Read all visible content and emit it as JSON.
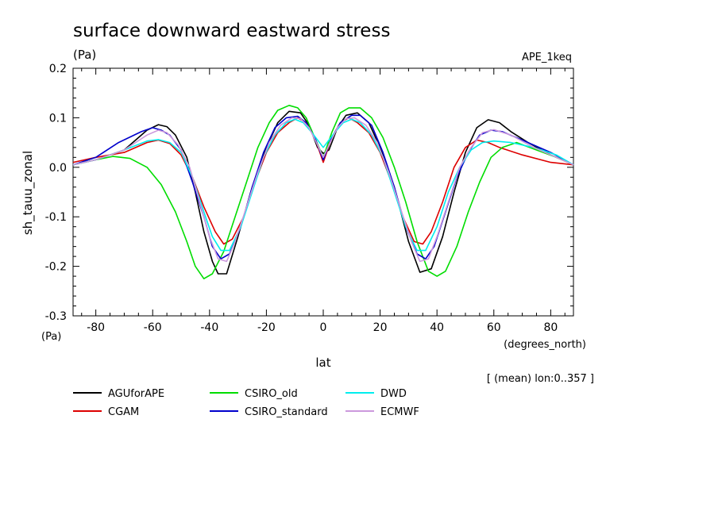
{
  "chart_data": {
    "type": "line",
    "title": "surface downward eastward stress",
    "units": "(Pa)",
    "experiment": "APE_1keq",
    "ylabel": "sh_tauu_zonal",
    "y_units": "(Pa)",
    "xlabel": "lat",
    "x_units": "(degrees_north)",
    "note": "[ (mean) lon:0..357 ]",
    "xlim": [
      -88,
      88
    ],
    "ylim": [
      -0.3,
      0.2
    ],
    "x_ticks": [
      "-80",
      "-60",
      "-40",
      "-20",
      "0",
      "20",
      "40",
      "60",
      "80"
    ],
    "y_ticks": [
      "0.2",
      "0.1",
      "0.0",
      "-0.1",
      "-0.2",
      "-0.3"
    ],
    "series": [
      {
        "name": "AGUforAPE",
        "color": "#000000",
        "points": [
          [
            -88,
            0.005
          ],
          [
            -80,
            0.015
          ],
          [
            -70,
            0.035
          ],
          [
            -62,
            0.075
          ],
          [
            -58,
            0.086
          ],
          [
            -55,
            0.082
          ],
          [
            -52,
            0.065
          ],
          [
            -48,
            0.02
          ],
          [
            -45,
            -0.05
          ],
          [
            -42,
            -0.13
          ],
          [
            -39,
            -0.19
          ],
          [
            -37,
            -0.215
          ],
          [
            -34,
            -0.215
          ],
          [
            -30,
            -0.14
          ],
          [
            -25,
            -0.04
          ],
          [
            -20,
            0.04
          ],
          [
            -16,
            0.09
          ],
          [
            -12,
            0.113
          ],
          [
            -8,
            0.11
          ],
          [
            -5,
            0.085
          ],
          [
            -2,
            0.04
          ],
          [
            0,
            0.028
          ],
          [
            2,
            0.035
          ],
          [
            5,
            0.08
          ],
          [
            8,
            0.105
          ],
          [
            12,
            0.11
          ],
          [
            16,
            0.09
          ],
          [
            20,
            0.04
          ],
          [
            25,
            -0.04
          ],
          [
            30,
            -0.15
          ],
          [
            34,
            -0.212
          ],
          [
            38,
            -0.205
          ],
          [
            42,
            -0.14
          ],
          [
            46,
            -0.05
          ],
          [
            50,
            0.03
          ],
          [
            54,
            0.08
          ],
          [
            58,
            0.096
          ],
          [
            62,
            0.09
          ],
          [
            66,
            0.072
          ],
          [
            72,
            0.05
          ],
          [
            80,
            0.025
          ],
          [
            88,
            0.005
          ]
        ]
      },
      {
        "name": "CGAM",
        "color": "#dd0000",
        "points": [
          [
            -88,
            0.01
          ],
          [
            -80,
            0.02
          ],
          [
            -70,
            0.03
          ],
          [
            -62,
            0.05
          ],
          [
            -58,
            0.055
          ],
          [
            -54,
            0.048
          ],
          [
            -50,
            0.025
          ],
          [
            -46,
            -0.02
          ],
          [
            -42,
            -0.08
          ],
          [
            -38,
            -0.13
          ],
          [
            -35,
            -0.155
          ],
          [
            -32,
            -0.145
          ],
          [
            -28,
            -0.1
          ],
          [
            -24,
            -0.03
          ],
          [
            -20,
            0.03
          ],
          [
            -16,
            0.07
          ],
          [
            -12,
            0.09
          ],
          [
            -9,
            0.1
          ],
          [
            -6,
            0.09
          ],
          [
            -3,
            0.06
          ],
          [
            0,
            0.01
          ],
          [
            3,
            0.06
          ],
          [
            6,
            0.09
          ],
          [
            9,
            0.1
          ],
          [
            12,
            0.09
          ],
          [
            16,
            0.07
          ],
          [
            20,
            0.03
          ],
          [
            24,
            -0.03
          ],
          [
            28,
            -0.1
          ],
          [
            32,
            -0.15
          ],
          [
            35,
            -0.155
          ],
          [
            38,
            -0.13
          ],
          [
            42,
            -0.07
          ],
          [
            46,
            0.0
          ],
          [
            50,
            0.04
          ],
          [
            54,
            0.055
          ],
          [
            58,
            0.05
          ],
          [
            62,
            0.04
          ],
          [
            70,
            0.025
          ],
          [
            80,
            0.01
          ],
          [
            88,
            0.005
          ]
        ]
      },
      {
        "name": "CSIRO_old",
        "color": "#00dd00",
        "points": [
          [
            -88,
            0.005
          ],
          [
            -80,
            0.015
          ],
          [
            -74,
            0.022
          ],
          [
            -68,
            0.018
          ],
          [
            -62,
            0.0
          ],
          [
            -57,
            -0.035
          ],
          [
            -52,
            -0.09
          ],
          [
            -48,
            -0.15
          ],
          [
            -45,
            -0.2
          ],
          [
            -42,
            -0.225
          ],
          [
            -39,
            -0.215
          ],
          [
            -35,
            -0.17
          ],
          [
            -31,
            -0.1
          ],
          [
            -27,
            -0.03
          ],
          [
            -23,
            0.04
          ],
          [
            -19,
            0.09
          ],
          [
            -16,
            0.115
          ],
          [
            -12,
            0.125
          ],
          [
            -9,
            0.12
          ],
          [
            -6,
            0.1
          ],
          [
            -3,
            0.06
          ],
          [
            0,
            0.02
          ],
          [
            3,
            0.07
          ],
          [
            6,
            0.11
          ],
          [
            9,
            0.12
          ],
          [
            13,
            0.12
          ],
          [
            17,
            0.1
          ],
          [
            21,
            0.06
          ],
          [
            25,
            0.0
          ],
          [
            29,
            -0.07
          ],
          [
            33,
            -0.15
          ],
          [
            37,
            -0.21
          ],
          [
            40,
            -0.22
          ],
          [
            43,
            -0.21
          ],
          [
            47,
            -0.16
          ],
          [
            51,
            -0.09
          ],
          [
            55,
            -0.03
          ],
          [
            59,
            0.02
          ],
          [
            63,
            0.04
          ],
          [
            68,
            0.05
          ],
          [
            75,
            0.035
          ],
          [
            82,
            0.02
          ],
          [
            88,
            0.005
          ]
        ]
      },
      {
        "name": "CSIRO_standard",
        "color": "#0000cc",
        "points": [
          [
            -88,
            0.005
          ],
          [
            -80,
            0.02
          ],
          [
            -72,
            0.05
          ],
          [
            -64,
            0.072
          ],
          [
            -60,
            0.08
          ],
          [
            -57,
            0.075
          ],
          [
            -54,
            0.065
          ],
          [
            -50,
            0.035
          ],
          [
            -46,
            -0.03
          ],
          [
            -42,
            -0.1
          ],
          [
            -39,
            -0.16
          ],
          [
            -36,
            -0.185
          ],
          [
            -33,
            -0.175
          ],
          [
            -29,
            -0.12
          ],
          [
            -25,
            -0.04
          ],
          [
            -21,
            0.03
          ],
          [
            -17,
            0.08
          ],
          [
            -13,
            0.1
          ],
          [
            -9,
            0.103
          ],
          [
            -6,
            0.09
          ],
          [
            -3,
            0.06
          ],
          [
            0,
            0.015
          ],
          [
            3,
            0.06
          ],
          [
            6,
            0.09
          ],
          [
            10,
            0.105
          ],
          [
            13,
            0.105
          ],
          [
            17,
            0.085
          ],
          [
            21,
            0.03
          ],
          [
            25,
            -0.04
          ],
          [
            29,
            -0.12
          ],
          [
            33,
            -0.175
          ],
          [
            36,
            -0.185
          ],
          [
            39,
            -0.16
          ],
          [
            43,
            -0.09
          ],
          [
            47,
            -0.02
          ],
          [
            51,
            0.03
          ],
          [
            55,
            0.065
          ],
          [
            59,
            0.075
          ],
          [
            63,
            0.072
          ],
          [
            70,
            0.055
          ],
          [
            80,
            0.03
          ],
          [
            88,
            0.005
          ]
        ]
      },
      {
        "name": "DWD",
        "color": "#00eeee",
        "points": [
          [
            -88,
            0.005
          ],
          [
            -80,
            0.015
          ],
          [
            -70,
            0.035
          ],
          [
            -62,
            0.053
          ],
          [
            -58,
            0.056
          ],
          [
            -54,
            0.05
          ],
          [
            -50,
            0.03
          ],
          [
            -46,
            -0.02
          ],
          [
            -42,
            -0.09
          ],
          [
            -39,
            -0.14
          ],
          [
            -36,
            -0.168
          ],
          [
            -33,
            -0.168
          ],
          [
            -29,
            -0.12
          ],
          [
            -25,
            -0.05
          ],
          [
            -21,
            0.02
          ],
          [
            -17,
            0.065
          ],
          [
            -13,
            0.09
          ],
          [
            -10,
            0.097
          ],
          [
            -7,
            0.09
          ],
          [
            -4,
            0.07
          ],
          [
            0,
            0.04
          ],
          [
            4,
            0.07
          ],
          [
            7,
            0.09
          ],
          [
            10,
            0.097
          ],
          [
            13,
            0.09
          ],
          [
            17,
            0.065
          ],
          [
            21,
            0.02
          ],
          [
            25,
            -0.05
          ],
          [
            29,
            -0.12
          ],
          [
            33,
            -0.168
          ],
          [
            36,
            -0.168
          ],
          [
            40,
            -0.12
          ],
          [
            44,
            -0.05
          ],
          [
            48,
            0.0
          ],
          [
            52,
            0.035
          ],
          [
            56,
            0.05
          ],
          [
            60,
            0.053
          ],
          [
            66,
            0.05
          ],
          [
            74,
            0.04
          ],
          [
            82,
            0.025
          ],
          [
            88,
            0.005
          ]
        ]
      },
      {
        "name": "ECMWF",
        "color": "#cc99dd",
        "points": [
          [
            -88,
            0.005
          ],
          [
            -80,
            0.015
          ],
          [
            -70,
            0.035
          ],
          [
            -62,
            0.065
          ],
          [
            -58,
            0.075
          ],
          [
            -55,
            0.07
          ],
          [
            -51,
            0.045
          ],
          [
            -47,
            0.0
          ],
          [
            -43,
            -0.08
          ],
          [
            -40,
            -0.14
          ],
          [
            -37,
            -0.185
          ],
          [
            -34,
            -0.19
          ],
          [
            -31,
            -0.15
          ],
          [
            -27,
            -0.08
          ],
          [
            -23,
            -0.01
          ],
          [
            -19,
            0.05
          ],
          [
            -15,
            0.085
          ],
          [
            -11,
            0.1
          ],
          [
            -8,
            0.098
          ],
          [
            -5,
            0.08
          ],
          [
            -2,
            0.045
          ],
          [
            0,
            0.02
          ],
          [
            2,
            0.045
          ],
          [
            5,
            0.08
          ],
          [
            8,
            0.098
          ],
          [
            11,
            0.1
          ],
          [
            15,
            0.085
          ],
          [
            19,
            0.05
          ],
          [
            23,
            -0.01
          ],
          [
            27,
            -0.08
          ],
          [
            31,
            -0.15
          ],
          [
            34,
            -0.19
          ],
          [
            37,
            -0.185
          ],
          [
            40,
            -0.14
          ],
          [
            44,
            -0.07
          ],
          [
            48,
            0.0
          ],
          [
            52,
            0.04
          ],
          [
            56,
            0.07
          ],
          [
            60,
            0.076
          ],
          [
            66,
            0.065
          ],
          [
            74,
            0.04
          ],
          [
            82,
            0.02
          ],
          [
            88,
            0.005
          ]
        ]
      }
    ]
  }
}
